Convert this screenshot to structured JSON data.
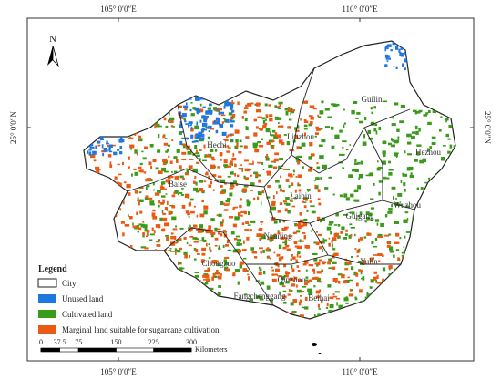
{
  "coordinates": {
    "top": [
      "105° 0′0″E",
      "110° 0′0″E"
    ],
    "bottom": [
      "105° 0′0″E",
      "110° 0′0″E"
    ],
    "left": "25° 0′0″N",
    "right": "25° 0′0″N"
  },
  "north_arrow": "N",
  "cities": [
    "Hechi",
    "Guilin",
    "Liuzhou",
    "Hezhou",
    "Baise",
    "Laibin",
    "Wuzhou",
    "Guigang",
    "Nanning",
    "Chongzuo",
    "Yulin",
    "Qinzhou",
    "Beihai",
    "Fangchenggang"
  ],
  "legend": {
    "title": "Legend",
    "items": [
      "City",
      "Unused land",
      "Cultivated land",
      "Marginal land suitable for sugarcane cultivation"
    ]
  },
  "scale_bar": {
    "ticks": [
      0,
      37.5,
      75,
      150,
      225,
      300
    ],
    "unit": "Kilometers"
  }
}
